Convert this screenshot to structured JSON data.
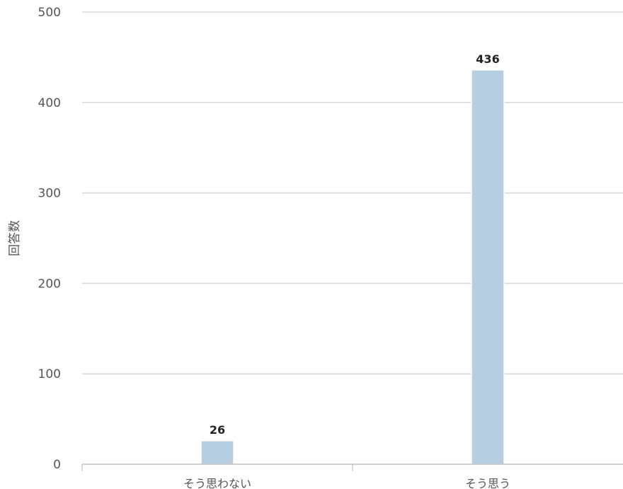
{
  "chart_data": {
    "type": "bar",
    "categories": [
      "そう思わない",
      "そう思う"
    ],
    "values": [
      26,
      436
    ],
    "data_labels": [
      "26",
      "436"
    ],
    "ylabel": "回答数",
    "xlabel": "",
    "ylim": [
      0,
      500
    ],
    "yticks": [
      0,
      100,
      200,
      300,
      400,
      500
    ],
    "ytick_labels": [
      "0",
      "100",
      "200",
      "300",
      "400",
      "500"
    ],
    "grid": true,
    "legend": "none",
    "bar_color": "#b7cde0"
  }
}
